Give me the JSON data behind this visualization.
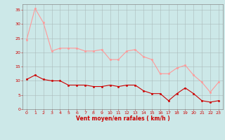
{
  "x": [
    0,
    1,
    2,
    3,
    4,
    5,
    6,
    7,
    8,
    9,
    10,
    11,
    12,
    13,
    14,
    15,
    16,
    17,
    18,
    19,
    20,
    21,
    22,
    23
  ],
  "wind_avg": [
    10.5,
    12.0,
    10.5,
    10.0,
    10.0,
    8.5,
    8.5,
    8.5,
    8.0,
    8.0,
    8.5,
    8.0,
    8.5,
    8.5,
    6.5,
    5.5,
    5.5,
    3.0,
    5.5,
    7.5,
    5.5,
    3.0,
    2.5,
    3.0
  ],
  "wind_gust": [
    24.5,
    35.5,
    30.5,
    20.5,
    21.5,
    21.5,
    21.5,
    20.5,
    20.5,
    21.0,
    17.5,
    17.5,
    20.5,
    21.0,
    18.5,
    17.5,
    12.5,
    12.5,
    14.5,
    15.5,
    12.0,
    9.5,
    6.0,
    9.5
  ],
  "avg_color": "#cc0000",
  "gust_color": "#ff9999",
  "bg_color": "#cce8e8",
  "grid_color": "#aabbbb",
  "xlabel": "Vent moyen/en rafales ( km/h )",
  "xlabel_color": "#cc0000",
  "tick_color": "#cc0000",
  "ylim": [
    0,
    37
  ],
  "yticks": [
    0,
    5,
    10,
    15,
    20,
    25,
    30,
    35
  ],
  "xlim": [
    -0.5,
    23.5
  ]
}
